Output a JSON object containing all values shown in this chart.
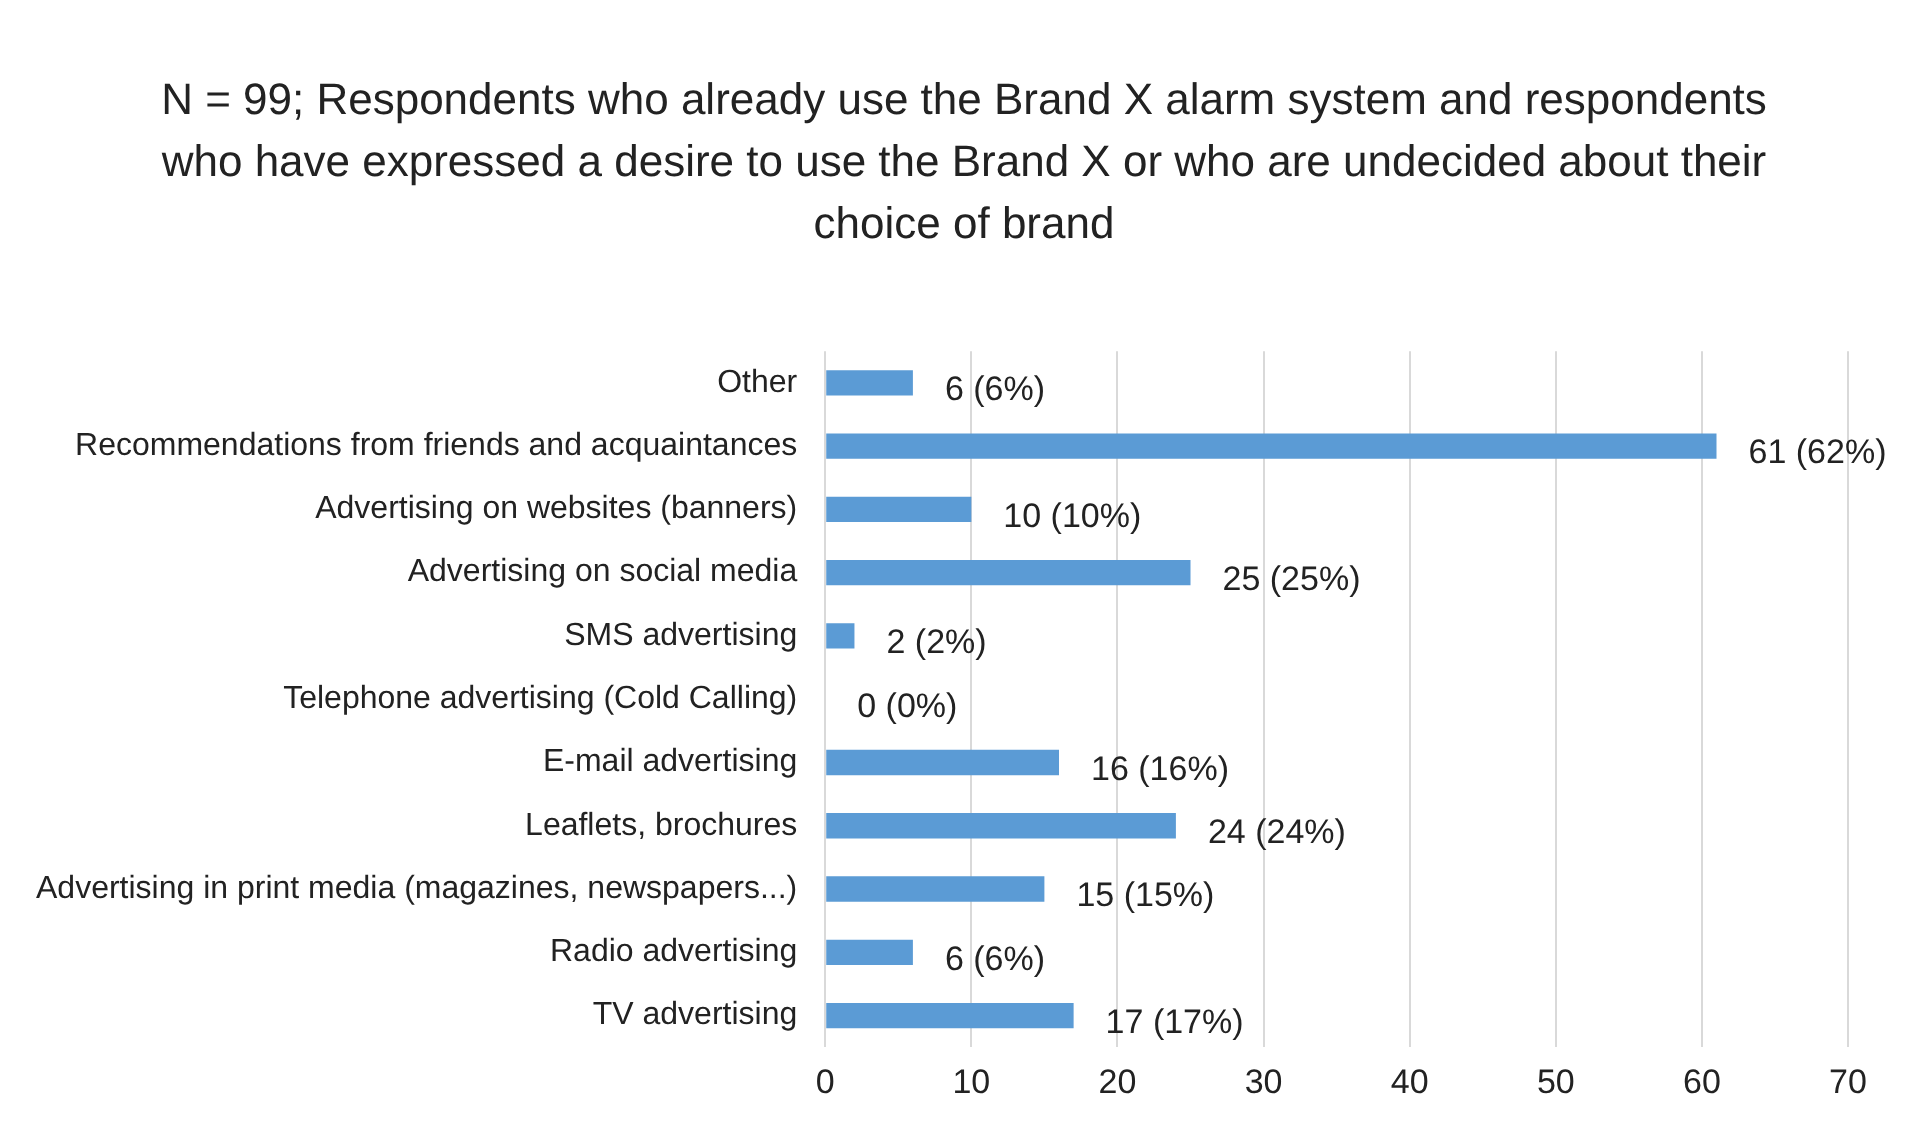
{
  "chart_data": {
    "type": "bar",
    "orientation": "horizontal",
    "title": "N = 99; Respondents who already use the Brand X alarm system and respondents who have expressed a desire to use the Brand X or who are undecided about their choice of brand",
    "categories": [
      "Other",
      "Recommendations from friends and acquaintances",
      "Advertising on websites (banners)",
      "Advertising on social media",
      "SMS advertising",
      "Telephone advertising (Cold Calling)",
      "E-mail advertising",
      "Leaflets, brochures",
      "Advertising in print media (magazines, newspapers...)",
      "Radio advertising",
      "TV advertising"
    ],
    "values": [
      6,
      61,
      10,
      25,
      2,
      0,
      16,
      24,
      15,
      6,
      17
    ],
    "value_labels": [
      "6 (6%)",
      "61 (62%)",
      "10 (10%)",
      "25 (25%)",
      "2 (2%)",
      "0 (0%)",
      "16 (16%)",
      "24 (24%)",
      "15 (15%)",
      "6 (6%)",
      "17 (17%)"
    ],
    "color": "#5b9bd5",
    "xlim": [
      0,
      70
    ],
    "xticks": [
      0,
      10,
      20,
      30,
      40,
      50,
      60,
      70
    ],
    "grid": "x",
    "legend": false
  }
}
